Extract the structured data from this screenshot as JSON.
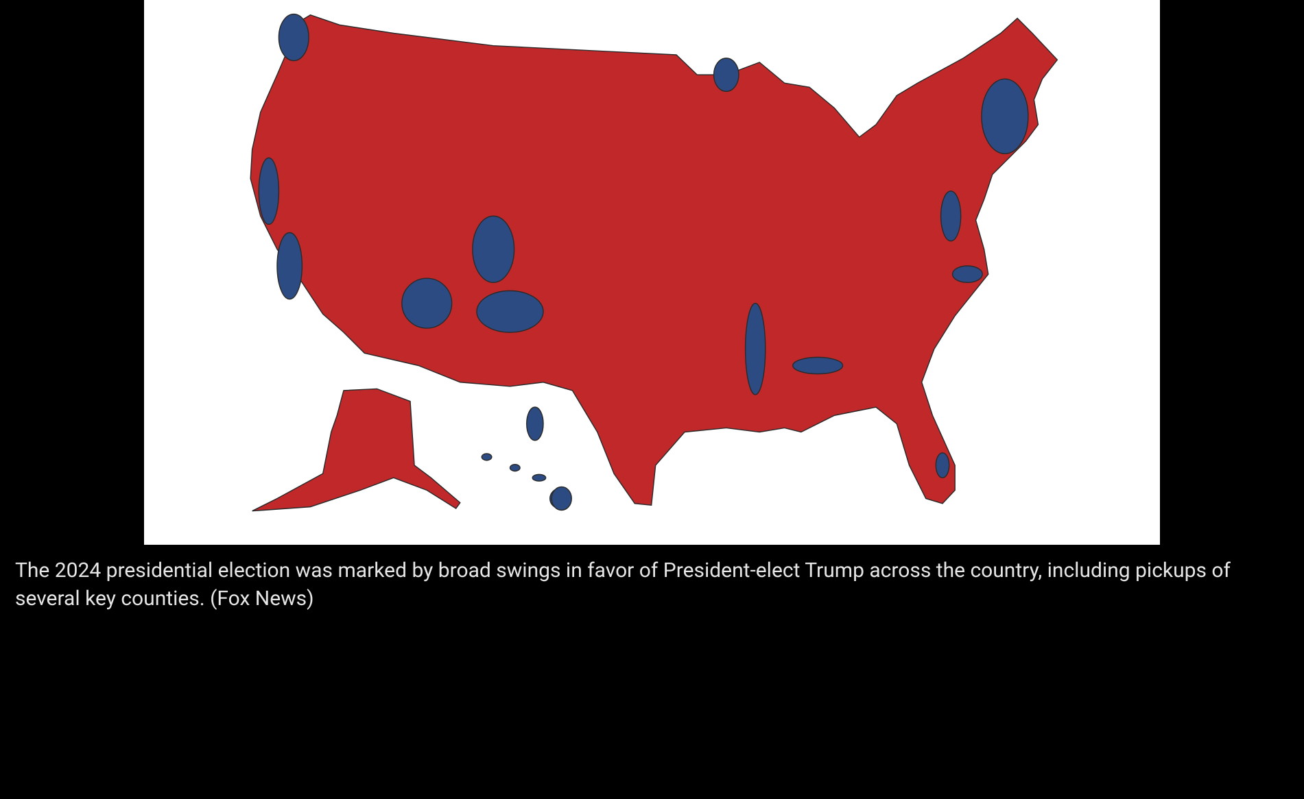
{
  "caption": "The 2024 presidential election was marked by broad swings in favor of President-elect Trump across the country, including pickups of several key counties. (Fox News)"
}
